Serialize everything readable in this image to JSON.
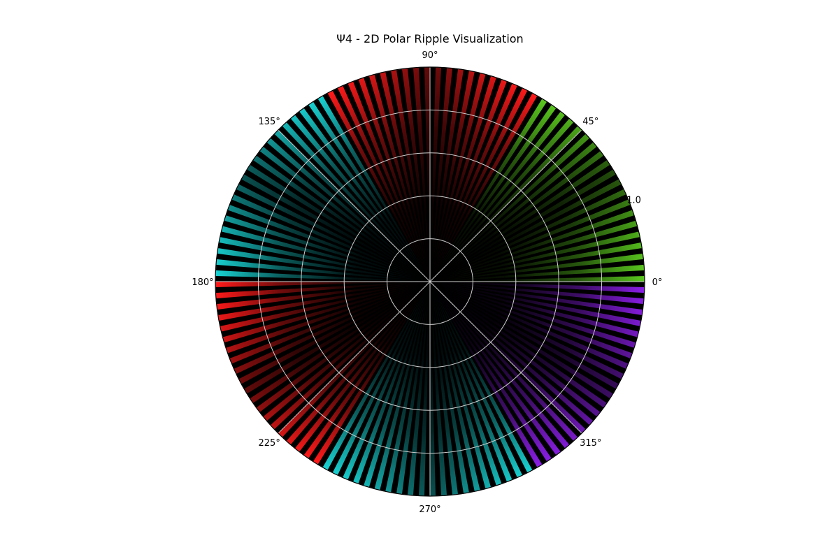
{
  "chart_data": {
    "type": "heatmap",
    "projection": "polar",
    "title": "Ψ4 - 2D Polar Ripple Visualization",
    "theta_tick_labels": [
      "0°",
      "45°",
      "90°",
      "135°",
      "180°",
      "225°",
      "270°",
      "315°"
    ],
    "theta_ticks_deg": [
      0,
      45,
      90,
      135,
      180,
      225,
      270,
      315
    ],
    "r_ticks": [
      0.2,
      0.4,
      0.6,
      0.8,
      1.0
    ],
    "r_tick_labels": [
      "",
      "",
      "",
      "",
      "1.0"
    ],
    "r_range": [
      0,
      1.0
    ],
    "grid": true,
    "background_color": "#000000",
    "grid_color": "#cfcfcf",
    "hue_sectors": [
      {
        "theta_range_deg": [
          0,
          60
        ],
        "color": "#5ac81e"
      },
      {
        "theta_range_deg": [
          60,
          120
        ],
        "color": "#ff1a1a"
      },
      {
        "theta_range_deg": [
          120,
          180
        ],
        "color": "#19d2d2"
      },
      {
        "theta_range_deg": [
          180,
          240
        ],
        "color": "#ff1a1a"
      },
      {
        "theta_range_deg": [
          240,
          300
        ],
        "color": "#19d2d2"
      },
      {
        "theta_range_deg": [
          300,
          360
        ],
        "color": "#8a1ee6"
      }
    ],
    "ripple": {
      "angular_stripes": 120,
      "intensity_grows_with_radius": true
    }
  }
}
